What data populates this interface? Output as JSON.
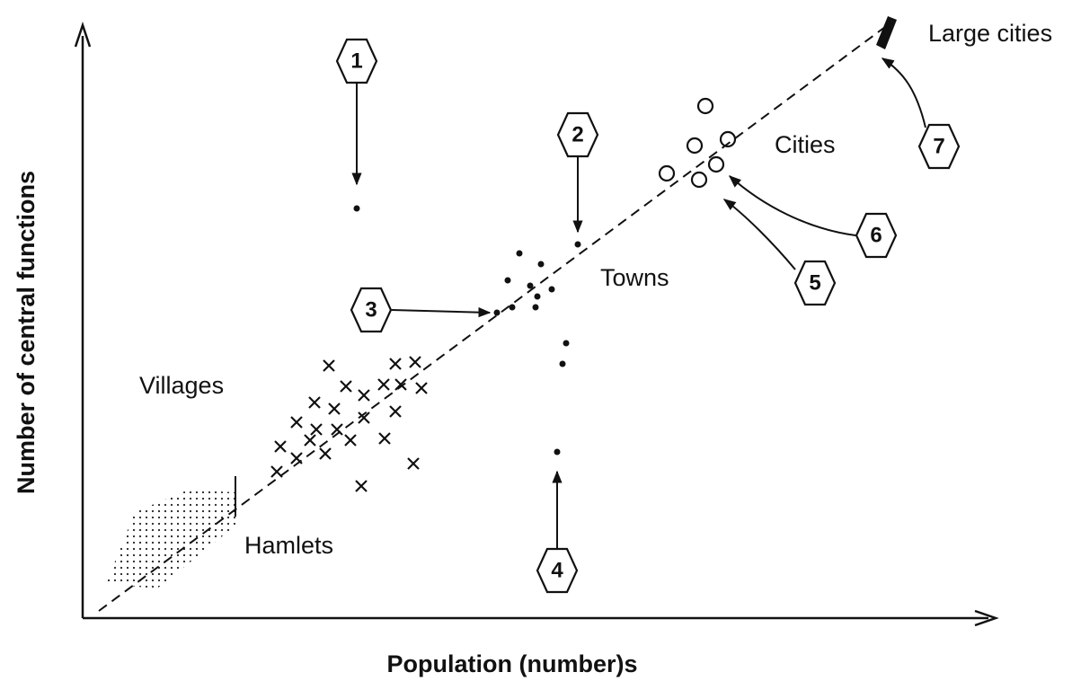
{
  "axes": {
    "x_label": "Population (number)s",
    "y_label": "Number of central functions"
  },
  "regions": [
    {
      "label": "Villages"
    },
    {
      "label": "Hamlets"
    },
    {
      "label": "Towns"
    },
    {
      "label": "Cities"
    },
    {
      "label": "Large cities"
    }
  ],
  "callouts": [
    {
      "label": "1"
    },
    {
      "label": "2"
    },
    {
      "label": "3"
    },
    {
      "label": "4"
    },
    {
      "label": "5"
    },
    {
      "label": "6"
    },
    {
      "label": "7"
    }
  ]
}
